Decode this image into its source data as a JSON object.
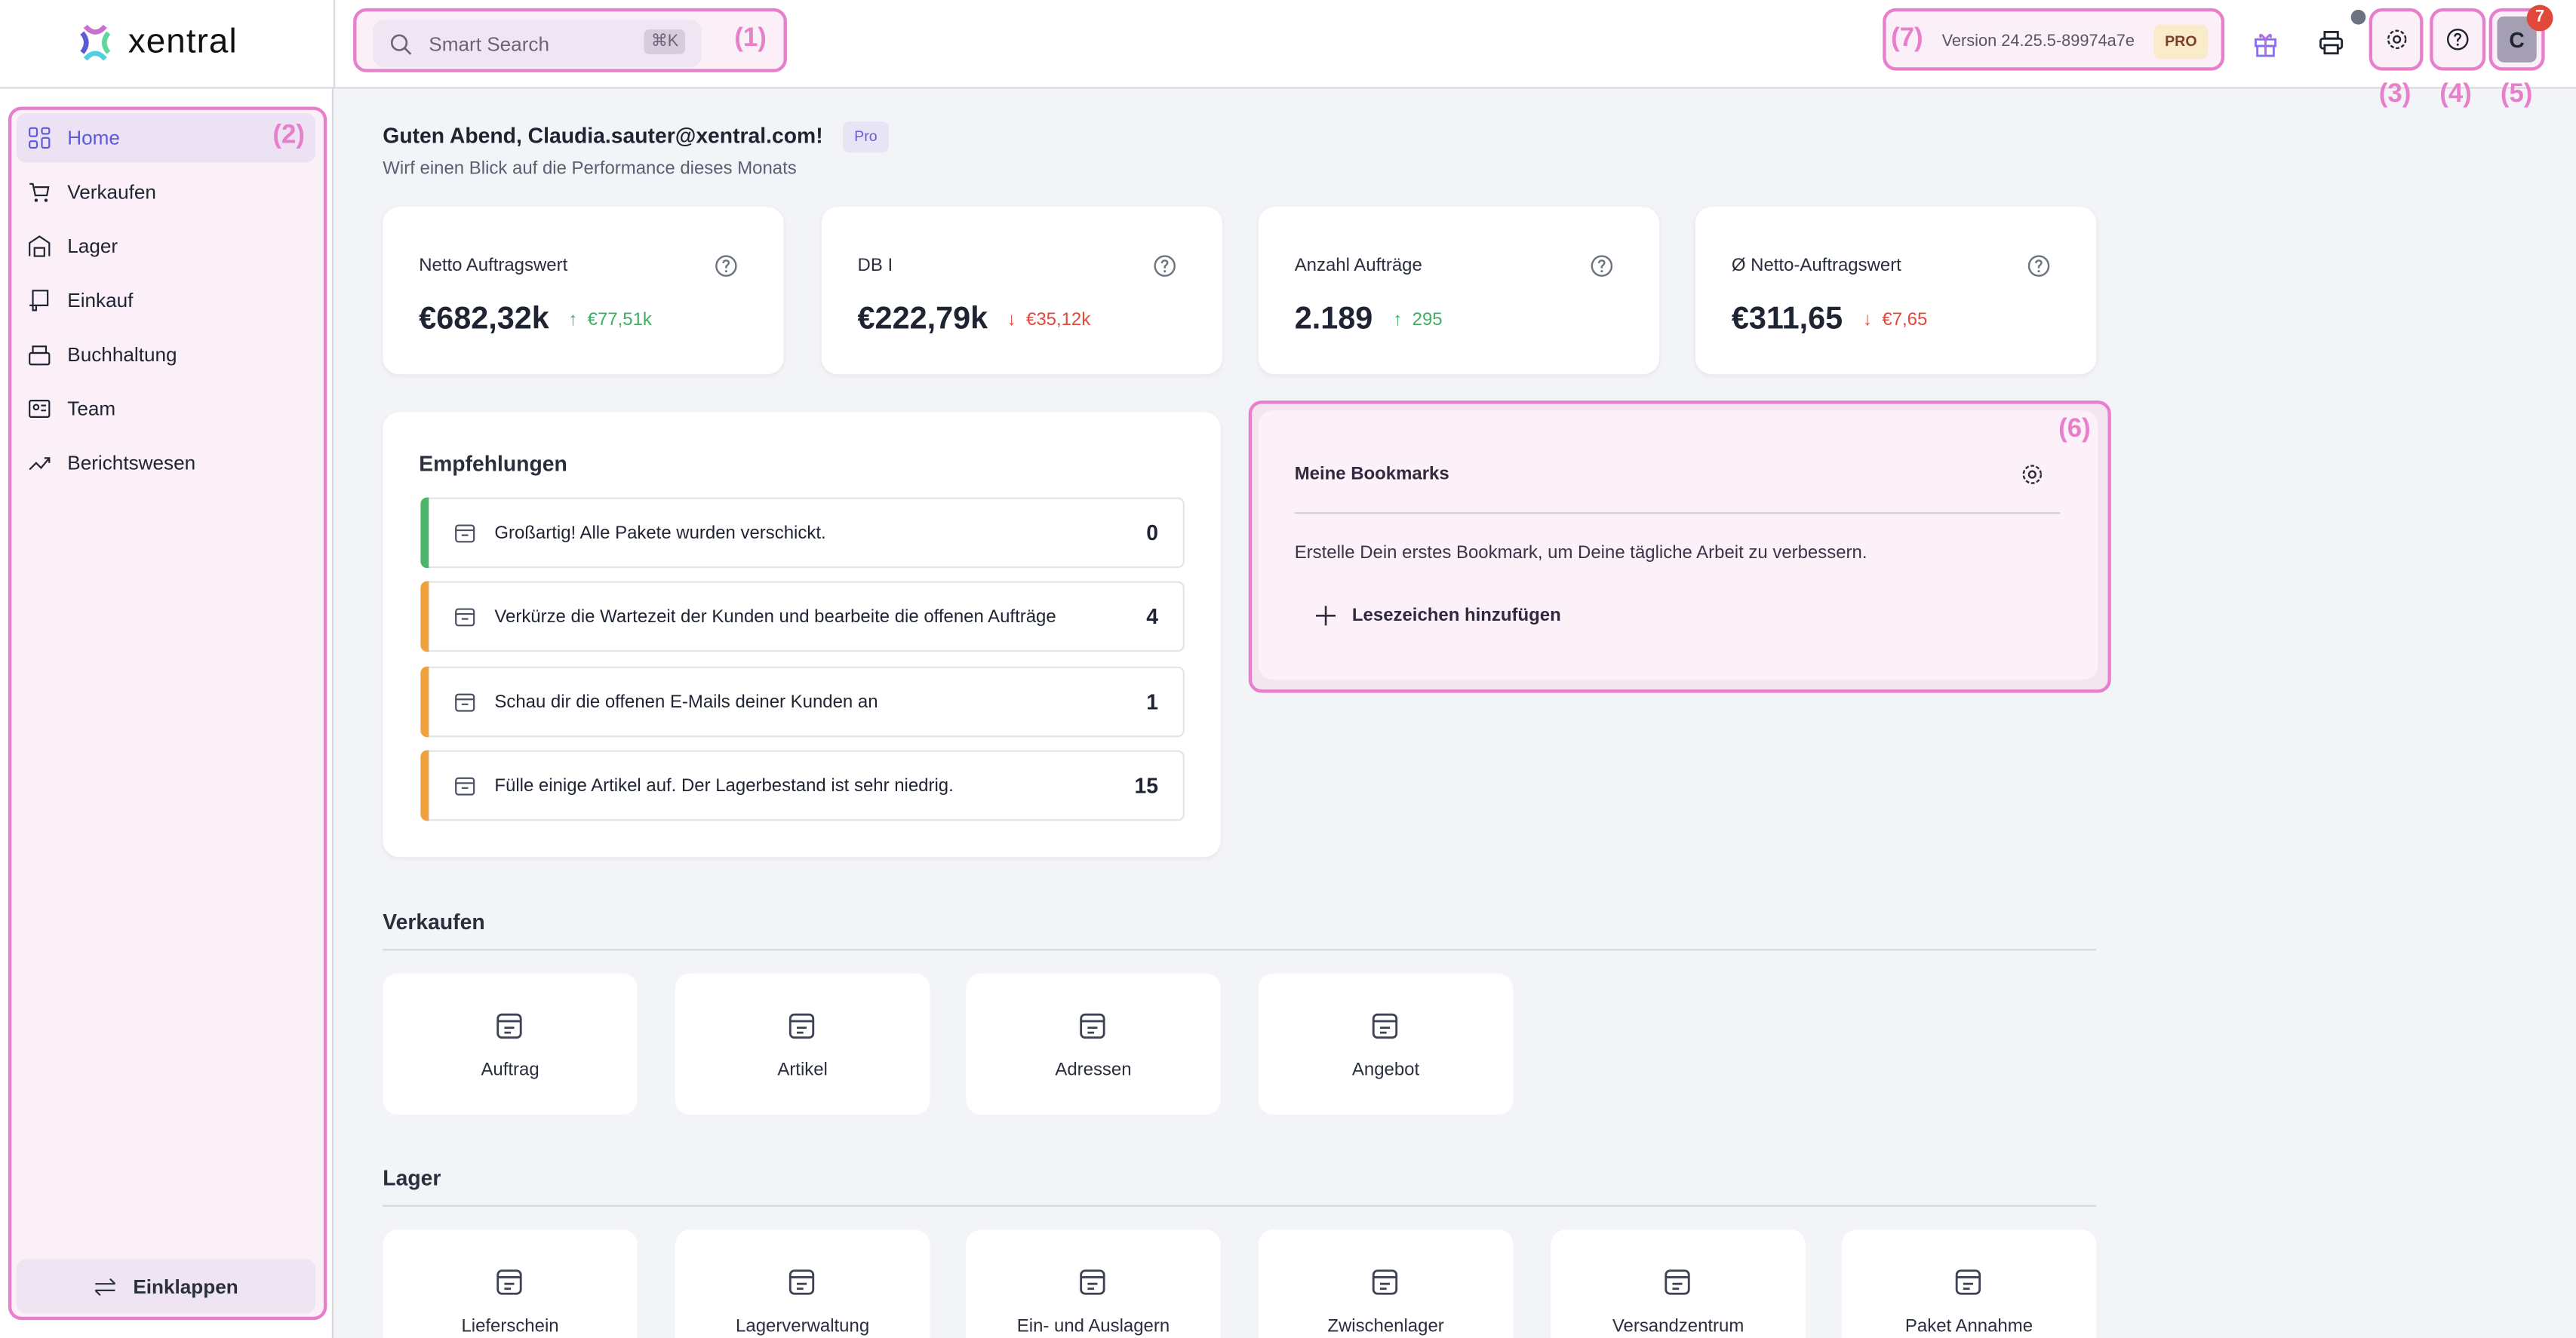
{
  "header": {
    "logo_text": "xentral",
    "search_placeholder": "Smart Search",
    "search_shortcut": "⌘K",
    "version": "Version 24.25.5-89974a7e",
    "plan_badge": "PRO",
    "avatar_initial": "C",
    "notification_count": "7",
    "icons": [
      "search-icon",
      "gift-icon",
      "printer-icon",
      "gear-icon",
      "help-icon"
    ]
  },
  "annotations": {
    "a1": "(1)",
    "a2": "(2)",
    "a3": "(3)",
    "a4": "(4)",
    "a5": "(5)",
    "a6": "(6)",
    "a7": "(7)",
    "color": "#e77fcb"
  },
  "sidebar": {
    "items": [
      {
        "label": "Home",
        "icon": "grid-icon",
        "active": true
      },
      {
        "label": "Verkaufen",
        "icon": "cart-icon"
      },
      {
        "label": "Lager",
        "icon": "warehouse-icon"
      },
      {
        "label": "Einkauf",
        "icon": "receipt-icon"
      },
      {
        "label": "Buchhaltung",
        "icon": "cash-register-icon"
      },
      {
        "label": "Team",
        "icon": "team-icon"
      },
      {
        "label": "Berichtswesen",
        "icon": "chart-icon"
      }
    ],
    "collapse_label": "Einklappen",
    "accent": "#5b5bd6"
  },
  "greeting": {
    "title": "Guten Abend, Claudia.sauter@xentral.com!",
    "badge": "Pro",
    "subtitle": "Wirf einen Blick auf die Performance dieses Monats"
  },
  "kpis": [
    {
      "label": "Netto Auftragswert",
      "value": "€682,32k",
      "delta": "€77,51k",
      "trend": "up"
    },
    {
      "label": "DB I",
      "value": "€222,79k",
      "delta": "€35,12k",
      "trend": "down"
    },
    {
      "label": "Anzahl Aufträge",
      "value": "2.189",
      "delta": "295",
      "trend": "up"
    },
    {
      "label": "Ø Netto-Auftragswert",
      "value": "€311,65",
      "delta": "€7,65",
      "trend": "down"
    }
  ],
  "recommendations": {
    "title": "Empfehlungen",
    "items": [
      {
        "text": "Großartig! Alle Pakete wurden verschickt.",
        "count": "0",
        "status": "#4cb56b",
        "icon": "archive-icon"
      },
      {
        "text": "Verkürze die Wartezeit der Kunden und bearbeite die offenen Aufträge",
        "count": "4",
        "status": "#f0a03c",
        "icon": "invoice-icon"
      },
      {
        "text": "Schau dir die offenen E-Mails deiner Kunden an",
        "count": "1",
        "status": "#f0a03c",
        "icon": "mail-icon"
      },
      {
        "text": "Fülle einige Artikel auf. Der Lagerbestand ist sehr niedrig.",
        "count": "15",
        "status": "#f0a03c",
        "icon": "warehouse-box-icon"
      }
    ]
  },
  "bookmarks": {
    "title": "Meine Bookmarks",
    "empty_text": "Erstelle Dein erstes Bookmark, um Deine tägliche Arbeit zu verbessern.",
    "add_label": "Lesezeichen hinzufügen"
  },
  "sections": [
    {
      "title": "Verkaufen",
      "tiles": [
        {
          "label": "Auftrag",
          "icon": "invoice-icon"
        },
        {
          "label": "Artikel",
          "icon": "archive-icon"
        },
        {
          "label": "Adressen",
          "icon": "users-icon"
        },
        {
          "label": "Angebot",
          "icon": "discount-badge-icon"
        }
      ]
    },
    {
      "title": "Lager",
      "tiles": [
        {
          "label": "Lieferschein",
          "icon": "checklist-icon"
        },
        {
          "label": "Lagerverwaltung",
          "icon": "warehouse-gear-icon"
        },
        {
          "label": "Ein- und Auslagern",
          "icon": "warehouse-arrows-icon"
        },
        {
          "label": "Zwischenlager",
          "icon": "warehouse-clock-icon"
        },
        {
          "label": "Versandzentrum",
          "icon": "archive-arrow-icon"
        },
        {
          "label": "Paket Annahme",
          "icon": "archive-check-icon"
        }
      ]
    }
  ]
}
